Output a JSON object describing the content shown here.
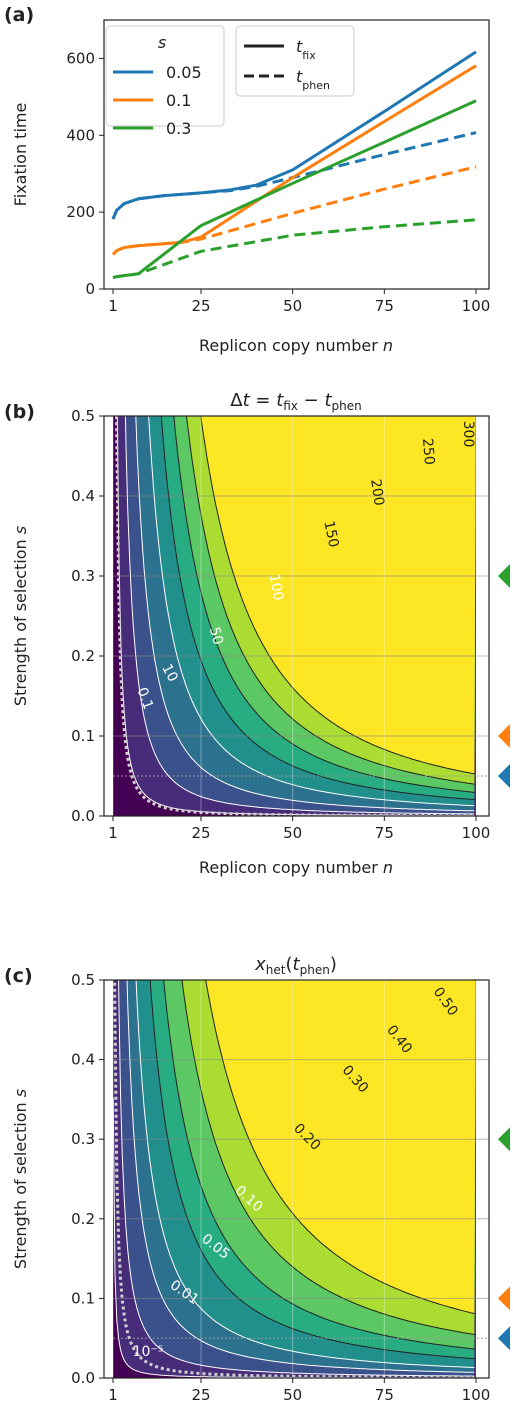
{
  "chart_data": [
    {
      "panel_label": "(a)",
      "type": "line",
      "xlabel": "Replicon copy number n",
      "ylabel": "Fixation time",
      "xlim": [
        1,
        100
      ],
      "ylim": [
        0,
        700
      ],
      "xticks": [
        1,
        25,
        50,
        75,
        100
      ],
      "yticks": [
        0,
        200,
        400,
        600
      ],
      "legend_s_title": "s",
      "legend_t_fix": "t_fix",
      "legend_t_phen": "t_phen",
      "series": [
        {
          "name": "0.05",
          "color": "#1f77b4",
          "metric": "t_fix",
          "x": [
            1,
            2,
            4,
            8,
            15,
            25,
            33,
            40,
            50,
            75,
            100
          ],
          "y": [
            182,
            205,
            222,
            235,
            243,
            250,
            258,
            270,
            310,
            462,
            617
          ]
        },
        {
          "name": "0.05",
          "color": "#1f77b4",
          "metric": "t_phen",
          "x": [
            1,
            2,
            4,
            8,
            15,
            25,
            33,
            40,
            50,
            75,
            100
          ],
          "y": [
            182,
            205,
            222,
            235,
            243,
            250,
            256,
            267,
            290,
            350,
            407
          ]
        },
        {
          "name": "0.1",
          "color": "#ff7f0e",
          "metric": "t_fix",
          "x": [
            1,
            2,
            4,
            8,
            15,
            20,
            25,
            50,
            75,
            100
          ],
          "y": [
            90,
            100,
            108,
            113,
            118,
            122,
            135,
            290,
            436,
            581
          ]
        },
        {
          "name": "0.1",
          "color": "#ff7f0e",
          "metric": "t_phen",
          "x": [
            1,
            2,
            4,
            8,
            15,
            20,
            25,
            50,
            75,
            100
          ],
          "y": [
            90,
            100,
            108,
            113,
            118,
            122,
            130,
            197,
            260,
            318
          ]
        },
        {
          "name": "0.3",
          "color": "#2ca02c",
          "metric": "t_fix",
          "x": [
            1,
            2,
            4,
            6,
            8,
            25,
            50,
            75,
            100
          ],
          "y": [
            30,
            32,
            35,
            37,
            40,
            165,
            275,
            382,
            490
          ]
        },
        {
          "name": "0.3",
          "color": "#2ca02c",
          "metric": "t_phen",
          "x": [
            1,
            2,
            4,
            6,
            8,
            25,
            50,
            75,
            100
          ],
          "y": [
            30,
            32,
            35,
            37,
            40,
            98,
            140,
            162,
            180
          ]
        }
      ]
    },
    {
      "panel_label": "(b)",
      "type": "heatmap",
      "title": "Δt = t_fix − t_phen",
      "xlabel": "Replicon copy number n",
      "ylabel": "Strength of selection s",
      "xlim": [
        1,
        100
      ],
      "ylim": [
        0,
        0.5
      ],
      "xticks": [
        1,
        25,
        50,
        75,
        100
      ],
      "yticks": [
        0.0,
        0.1,
        0.2,
        0.3,
        0.4,
        0.5
      ],
      "contour_levels": [
        0.1,
        10,
        50,
        100,
        150,
        200,
        250,
        300
      ],
      "contour_labels": [
        "0.1",
        "10",
        "50",
        "100",
        "150",
        "200",
        "250",
        "300"
      ],
      "colormap": "viridis",
      "marker_s_values": [
        0.3,
        0.1,
        0.05
      ],
      "marker_colors": [
        "#2ca02c",
        "#ff7f0e",
        "#1f77b4"
      ]
    },
    {
      "panel_label": "(c)",
      "type": "heatmap",
      "title": "x_het(t_phen)",
      "xlabel": "Replicon copy number n",
      "ylabel": "Strength of selection s",
      "xlim": [
        1,
        100
      ],
      "ylim": [
        0,
        0.5
      ],
      "xticks": [
        1,
        25,
        50,
        75,
        100
      ],
      "yticks": [
        0.0,
        0.1,
        0.2,
        0.3,
        0.4,
        0.5
      ],
      "contour_levels": [
        1e-05,
        0.01,
        0.05,
        0.1,
        0.2,
        0.3,
        0.4,
        0.5
      ],
      "contour_labels": [
        "10⁻⁵",
        "0.01",
        "0.05",
        "0.10",
        "0.20",
        "0.30",
        "0.40",
        "0.50"
      ],
      "colormap": "viridis",
      "marker_s_values": [
        0.3,
        0.1,
        0.05
      ],
      "marker_colors": [
        "#2ca02c",
        "#ff7f0e",
        "#1f77b4"
      ]
    }
  ]
}
